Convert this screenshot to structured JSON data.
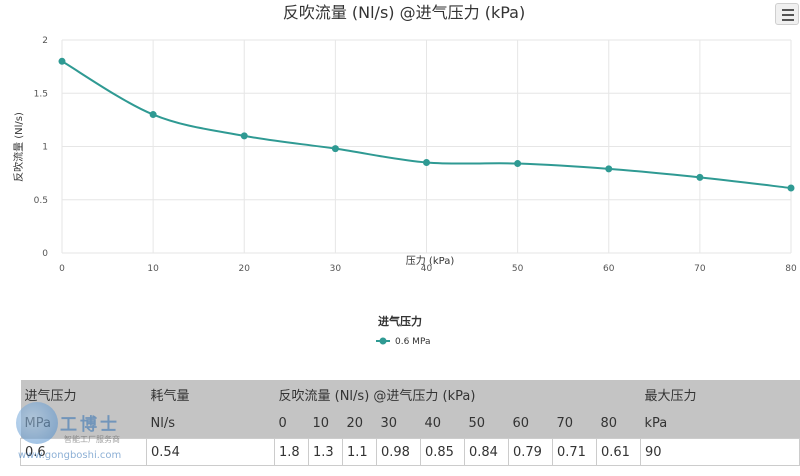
{
  "chart_data": {
    "type": "line",
    "title": "反吹流量 (Nl/s) @进气压力 (kPa)",
    "xlabel": "压力 (kPa)",
    "ylabel": "反吹流量 (Nl/s)",
    "x": [
      0,
      10,
      20,
      30,
      40,
      50,
      60,
      70,
      80
    ],
    "xlim": [
      0,
      80
    ],
    "ylim": [
      0,
      2
    ],
    "xticks": [
      "0",
      "10",
      "20",
      "30",
      "40",
      "50",
      "60",
      "70",
      "80"
    ],
    "yticks": [
      "0",
      "0.5",
      "1",
      "1.5",
      "2"
    ],
    "grid": true,
    "legend": {
      "title": "进气压力",
      "position": "bottom"
    },
    "series": [
      {
        "name": "0.6 MPa",
        "values": [
          1.8,
          1.3,
          1.1,
          0.98,
          0.85,
          0.84,
          0.79,
          0.71,
          0.61
        ],
        "color": "#2f9a93"
      }
    ]
  },
  "table": {
    "hdr1": [
      "进气压力",
      "耗气量",
      "反吹流量 (Nl/s) @进气压力 (kPa)",
      "最大压力"
    ],
    "hdr2": [
      "MPa",
      "Nl/s",
      "0",
      "10",
      "20",
      "30",
      "40",
      "50",
      "60",
      "70",
      "80",
      "kPa"
    ],
    "row": [
      "0.6",
      "0.54",
      "1.8",
      "1.3",
      "1.1",
      "0.98",
      "0.85",
      "0.84",
      "0.79",
      "0.71",
      "0.61",
      "90"
    ]
  },
  "watermark": {
    "brand": "工博士",
    "sub": "智能工厂服务商",
    "url": "www.gongboshi.com"
  },
  "icons": {
    "menu": "hamburger-menu-icon"
  }
}
